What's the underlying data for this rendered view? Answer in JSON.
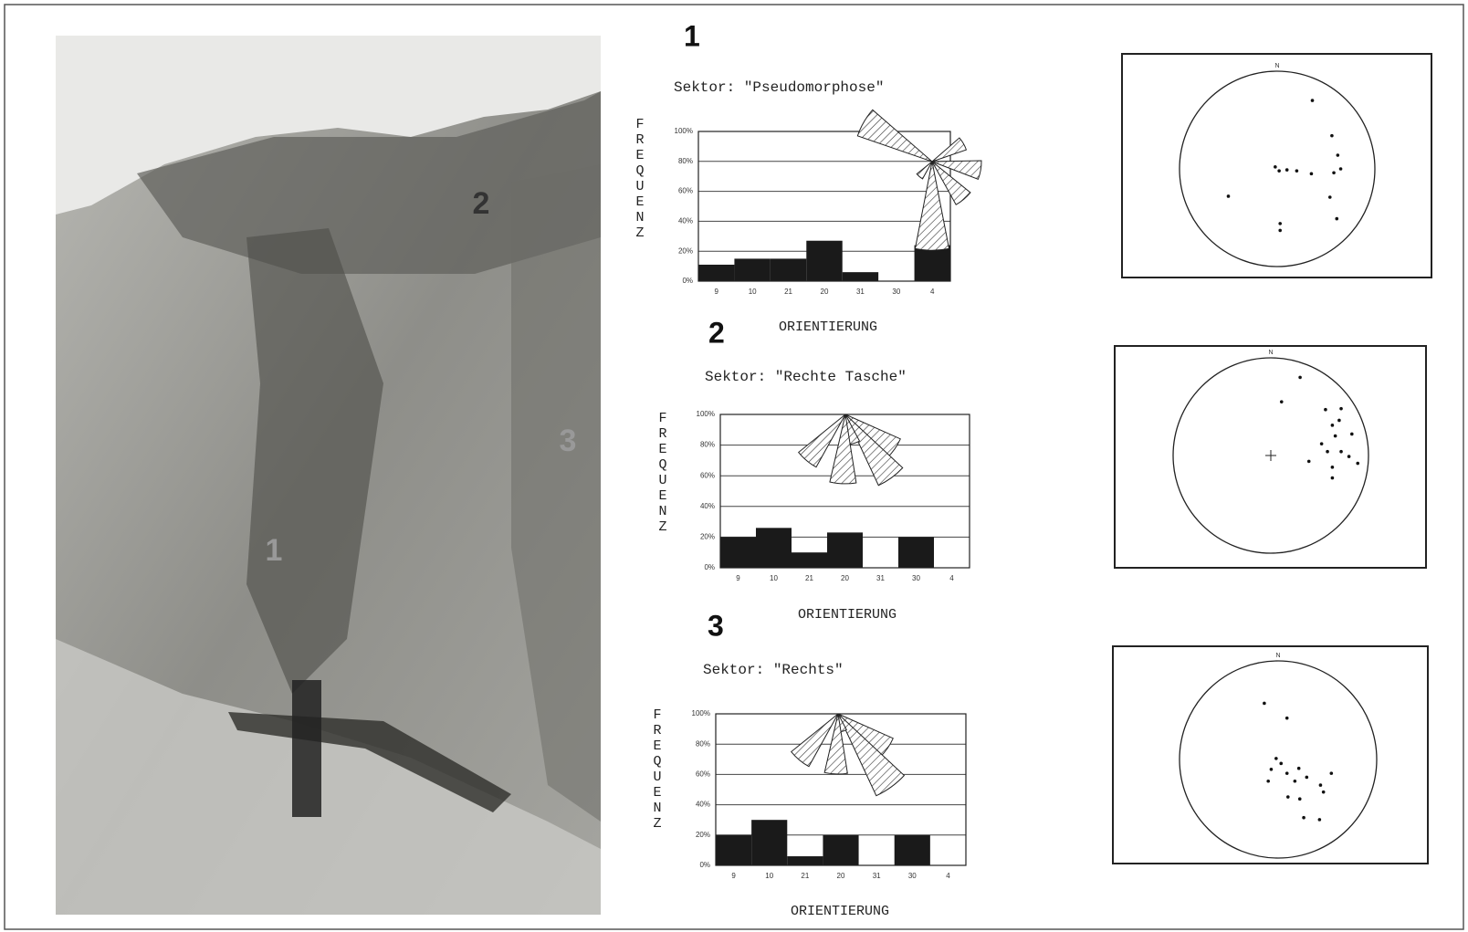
{
  "photo": {
    "labels": [
      "2",
      "3",
      "1"
    ]
  },
  "chart_data": [
    {
      "type": "bar",
      "number": "1",
      "title": "Sektor: \"Pseudomorphose\"",
      "ylabel": "FREQUENZ",
      "xlabel": "ORIENTIERUNG",
      "categories": [
        "9",
        "10",
        "21",
        "20",
        "31",
        "30",
        "4"
      ],
      "values": [
        11,
        15,
        15,
        27,
        6,
        0,
        24
      ],
      "color": "#1a1a1a",
      "ylim": [
        0,
        100
      ],
      "yticks": [
        {
          "value": 0,
          "label": "0%"
        },
        {
          "value": 20,
          "label": "20%"
        },
        {
          "value": 40,
          "label": "40%"
        },
        {
          "value": 60,
          "label": "60%"
        },
        {
          "value": 80,
          "label": "80%"
        },
        {
          "value": 100,
          "label": "100%"
        }
      ],
      "grid": true
    },
    {
      "type": "bar",
      "number": "2",
      "title": "Sektor: \"Rechte Tasche\"",
      "ylabel": "FREQUENZ",
      "xlabel": "ORIENTIERUNG",
      "categories": [
        "9",
        "10",
        "21",
        "20",
        "31",
        "30",
        "4"
      ],
      "values": [
        20,
        26,
        10,
        23,
        0,
        20,
        0
      ],
      "color": "#1a1a1a",
      "ylim": [
        0,
        100
      ],
      "yticks": [
        {
          "value": 0,
          "label": "0%"
        },
        {
          "value": 20,
          "label": "20%"
        },
        {
          "value": 40,
          "label": "40%"
        },
        {
          "value": 60,
          "label": "60%"
        },
        {
          "value": 80,
          "label": "80%"
        },
        {
          "value": 100,
          "label": "100%"
        }
      ],
      "grid": true
    },
    {
      "type": "bar",
      "number": "3",
      "title": "Sektor: \"Rechts\"",
      "ylabel": "FREQUENZ",
      "xlabel": "ORIENTIERUNG",
      "categories": [
        "9",
        "10",
        "21",
        "20",
        "31",
        "30",
        "4"
      ],
      "values": [
        20,
        30,
        6,
        20,
        0,
        20,
        0
      ],
      "color": "#1a1a1a",
      "ylim": [
        0,
        100
      ],
      "yticks": [
        {
          "value": 0,
          "label": "0%"
        },
        {
          "value": 20,
          "label": "20%"
        },
        {
          "value": 40,
          "label": "40%"
        },
        {
          "value": 60,
          "label": "60%"
        },
        {
          "value": 80,
          "label": "80%"
        },
        {
          "value": 100,
          "label": "100%"
        }
      ],
      "grid": true
    },
    {
      "type": "stereonet",
      "north": "N",
      "xlim": [
        -1,
        1
      ],
      "ylim": [
        -1,
        1
      ],
      "x": [
        -0.02,
        0.02,
        0.1,
        0.2,
        0.35,
        0.58,
        0.65,
        0.62,
        0.56,
        0.36,
        0.54,
        0.61,
        0.03,
        0.03,
        -0.5
      ],
      "y": [
        0.02,
        -0.02,
        -0.01,
        -0.02,
        -0.05,
        -0.04,
        0,
        0.14,
        0.34,
        0.7,
        -0.29,
        -0.51,
        -0.56,
        -0.63,
        -0.28
      ]
    },
    {
      "type": "stereonet",
      "north": "N",
      "xlim": [
        -1,
        1
      ],
      "ylim": [
        -1,
        1
      ],
      "x": [
        0.3,
        0.11,
        0.56,
        0.72,
        0.7,
        0.63,
        0.83,
        0.52,
        0.66,
        0.58,
        0.72,
        0.8,
        0.39,
        0.89,
        0.63,
        0.63
      ],
      "y": [
        0.8,
        0.55,
        0.47,
        0.48,
        0.36,
        0.31,
        0.22,
        0.12,
        0.2,
        0.04,
        0.04,
        -0.01,
        -0.06,
        -0.08,
        -0.12,
        -0.23
      ]
    },
    {
      "type": "stereonet",
      "north": "N",
      "xlim": [
        -1,
        1
      ],
      "ylim": [
        -1,
        1
      ],
      "x": [
        -0.14,
        0.09,
        -0.02,
        0.03,
        -0.07,
        0.09,
        0.21,
        0.29,
        0.17,
        0.43,
        0.54,
        -0.1,
        0.1,
        0.22,
        0.46,
        0.26,
        0.42
      ],
      "y": [
        0.57,
        0.42,
        0.01,
        -0.04,
        -0.1,
        -0.14,
        -0.09,
        -0.18,
        -0.22,
        -0.26,
        -0.14,
        -0.22,
        -0.38,
        -0.4,
        -0.33,
        -0.59,
        -0.61
      ]
    }
  ]
}
